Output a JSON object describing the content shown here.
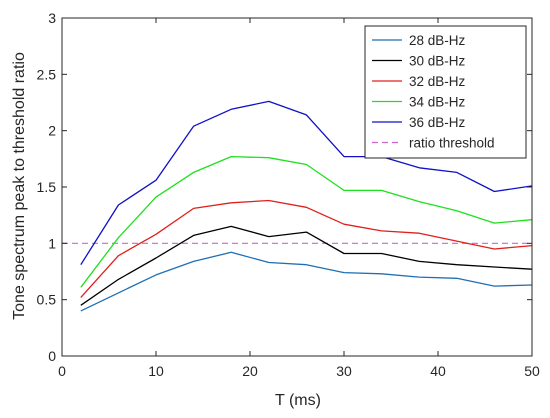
{
  "chart_data": {
    "type": "line",
    "title": "",
    "xlabel": "T (ms)",
    "ylabel": "Tone spectrum peak to threshold ratio",
    "xlim": [
      0,
      50
    ],
    "ylim": [
      0,
      3
    ],
    "xticks": [
      0,
      10,
      20,
      30,
      40,
      50
    ],
    "yticks": [
      0,
      0.5,
      1,
      1.5,
      2,
      2.5,
      3
    ],
    "xtick_labels": [
      "0",
      "10",
      "20",
      "30",
      "40",
      "50"
    ],
    "ytick_labels": [
      "0",
      "0.5",
      "1",
      "1.5",
      "2",
      "2.5",
      "3"
    ],
    "grid": false,
    "legend_position": "top-right",
    "x": [
      2,
      6,
      10,
      14,
      18,
      22,
      26,
      30,
      34,
      38,
      42,
      46,
      50
    ],
    "series": [
      {
        "name": "28 dB-Hz",
        "color": "#1f6fb5",
        "values": [
          0.4,
          0.56,
          0.72,
          0.84,
          0.92,
          0.83,
          0.81,
          0.74,
          0.73,
          0.7,
          0.69,
          0.62,
          0.63
        ]
      },
      {
        "name": "30 dB-Hz",
        "color": "#000000",
        "values": [
          0.45,
          0.68,
          0.87,
          1.07,
          1.15,
          1.06,
          1.1,
          0.91,
          0.91,
          0.84,
          0.81,
          0.79,
          0.77
        ]
      },
      {
        "name": "32 dB-Hz",
        "color": "#e0201b",
        "values": [
          0.52,
          0.89,
          1.08,
          1.31,
          1.36,
          1.38,
          1.32,
          1.17,
          1.11,
          1.09,
          1.02,
          0.95,
          0.98
        ]
      },
      {
        "name": "34 dB-Hz",
        "color": "#1ee01e",
        "values": [
          0.61,
          1.05,
          1.41,
          1.63,
          1.77,
          1.76,
          1.7,
          1.47,
          1.47,
          1.37,
          1.29,
          1.18,
          1.21
        ]
      },
      {
        "name": "36 dB-Hz",
        "color": "#1010c8",
        "values": [
          0.81,
          1.34,
          1.56,
          2.04,
          2.19,
          2.26,
          2.14,
          1.77,
          1.77,
          1.67,
          1.63,
          1.46,
          1.51
        ]
      }
    ],
    "threshold": {
      "name": "ratio threshold",
      "value": 1.0,
      "color": "#cc66cc",
      "style": "dashed"
    }
  }
}
